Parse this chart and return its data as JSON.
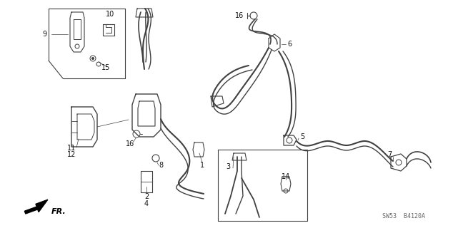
{
  "bg_color": "#ffffff",
  "line_color": "#404040",
  "fig_width": 6.34,
  "fig_height": 3.2,
  "dpi": 100,
  "watermark": "SW53  B4120A",
  "fr_label": "FR.",
  "label_fontsize": 7.0,
  "part_draw_color": "#505050"
}
